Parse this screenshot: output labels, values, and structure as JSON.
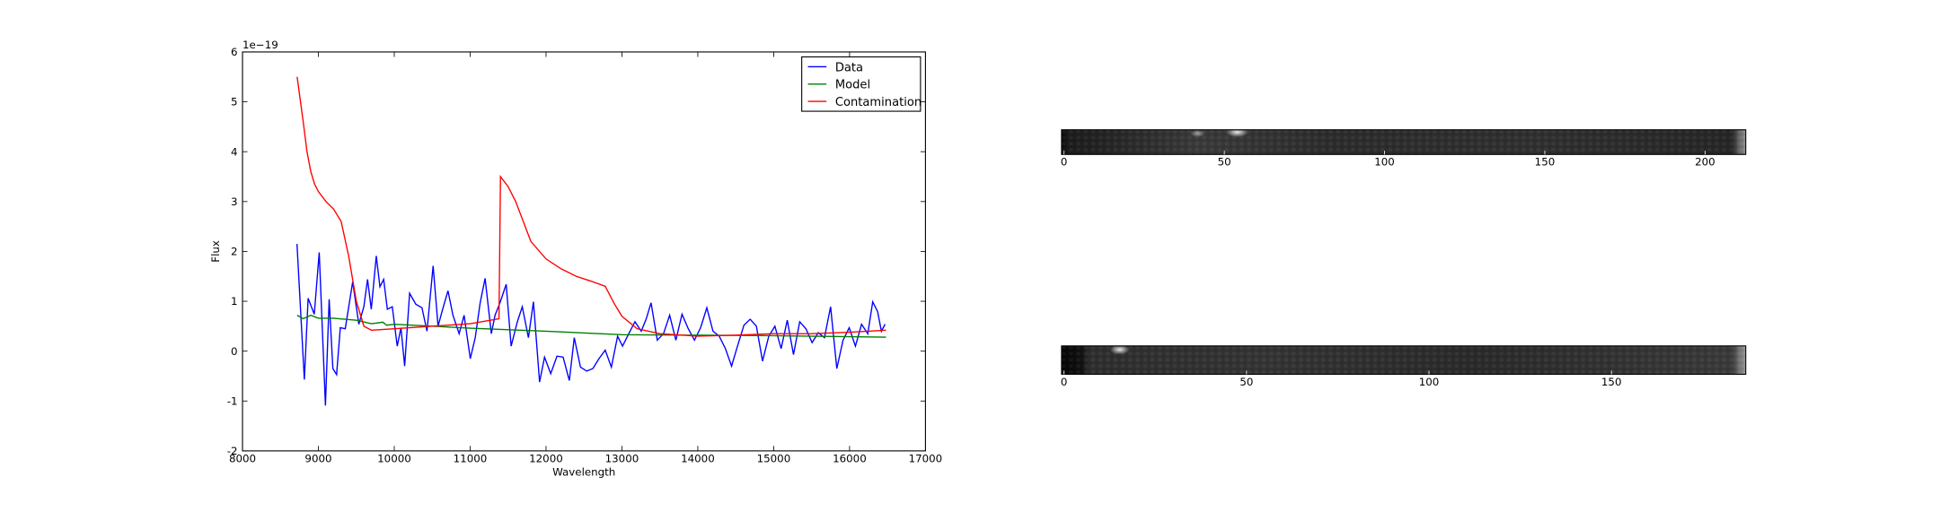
{
  "chart_data": [
    {
      "type": "line",
      "xlabel": "Wavelength",
      "ylabel": "Flux",
      "offset_text": "1e−19",
      "xlim": [
        8000,
        17000
      ],
      "xticks": [
        8000,
        9000,
        10000,
        11000,
        12000,
        13000,
        14000,
        15000,
        16000,
        17000
      ],
      "ylim": [
        -2,
        6
      ],
      "yticks": [
        -2,
        -1,
        0,
        1,
        2,
        3,
        4,
        5,
        6
      ],
      "legend": "upper right",
      "series": [
        {
          "name": "Data",
          "color": "#0000ff",
          "x": [
            8718,
            8815,
            8865,
            8946,
            9011,
            9093,
            9142,
            9191,
            9240,
            9289,
            9354,
            9452,
            9533,
            9599,
            9648,
            9697,
            9763,
            9811,
            9860,
            9909,
            9974,
            10039,
            10088,
            10137,
            10202,
            10284,
            10365,
            10431,
            10512,
            10577,
            10643,
            10708,
            10773,
            10855,
            10920,
            11002,
            11067,
            11132,
            11197,
            11279,
            11328,
            11393,
            11475,
            11540,
            11622,
            11687,
            11768,
            11834,
            11915,
            11980,
            12062,
            12144,
            12225,
            12307,
            12372,
            12454,
            12535,
            12617,
            12698,
            12780,
            12861,
            12943,
            13008,
            13090,
            13172,
            13254,
            13319,
            13384,
            13466,
            13548,
            13629,
            13711,
            13792,
            13874,
            13956,
            14037,
            14119,
            14200,
            14282,
            14364,
            14445,
            14527,
            14608,
            14690,
            14772,
            14853,
            14935,
            15016,
            15098,
            15179,
            15261,
            15343,
            15424,
            15506,
            15587,
            15669,
            15750,
            15832,
            15914,
            15995,
            16077,
            16158,
            16240,
            16305,
            16370,
            16419,
            16468
          ],
          "values": [
            2.15,
            -0.57,
            1.06,
            0.74,
            1.98,
            -1.09,
            1.04,
            -0.35,
            -0.47,
            0.47,
            0.45,
            1.39,
            0.54,
            0.89,
            1.44,
            0.84,
            1.91,
            1.29,
            1.44,
            0.84,
            0.89,
            0.1,
            0.47,
            -0.3,
            1.16,
            0.94,
            0.87,
            0.4,
            1.71,
            0.5,
            0.87,
            1.21,
            0.72,
            0.35,
            0.72,
            -0.15,
            0.27,
            0.97,
            1.46,
            0.35,
            0.72,
            0.97,
            1.34,
            0.1,
            0.59,
            0.89,
            0.27,
            0.99,
            -0.62,
            -0.12,
            -0.45,
            -0.1,
            -0.12,
            -0.59,
            0.27,
            -0.32,
            -0.4,
            -0.35,
            -0.15,
            0.02,
            -0.32,
            0.3,
            0.1,
            0.35,
            0.59,
            0.4,
            0.64,
            0.97,
            0.22,
            0.35,
            0.72,
            0.22,
            0.74,
            0.45,
            0.22,
            0.47,
            0.87,
            0.4,
            0.3,
            0.05,
            -0.3,
            0.12,
            0.52,
            0.64,
            0.5,
            -0.2,
            0.3,
            0.5,
            0.05,
            0.62,
            -0.07,
            0.59,
            0.45,
            0.17,
            0.37,
            0.27,
            0.89,
            -0.35,
            0.22,
            0.47,
            0.1,
            0.54,
            0.35,
            0.99,
            0.79,
            0.4,
            0.54
          ]
        },
        {
          "name": "Model",
          "color": "#008000",
          "x": [
            8720,
            8800,
            8900,
            9000,
            9200,
            9500,
            9700,
            9850,
            9900,
            10000,
            10500,
            11000,
            12000,
            13000,
            14000,
            15000,
            16480
          ],
          "values": [
            0.72,
            0.65,
            0.72,
            0.66,
            0.66,
            0.62,
            0.55,
            0.58,
            0.52,
            0.54,
            0.5,
            0.46,
            0.4,
            0.33,
            0.32,
            0.31,
            0.28
          ]
        },
        {
          "name": "Contamination",
          "color": "#ff0000",
          "x": [
            8720,
            8800,
            8850,
            8900,
            8950,
            9000,
            9100,
            9200,
            9300,
            9400,
            9500,
            9600,
            9700,
            10000,
            10500,
            11000,
            11380,
            11400,
            11500,
            11600,
            11700,
            11800,
            12000,
            12200,
            12400,
            12600,
            12780,
            12900,
            13000,
            13200,
            13500,
            14000,
            14500,
            15000,
            15500,
            16000,
            16480
          ],
          "values": [
            5.5,
            4.6,
            4.0,
            3.6,
            3.35,
            3.2,
            3.0,
            2.85,
            2.6,
            1.9,
            1.0,
            0.5,
            0.42,
            0.45,
            0.5,
            0.55,
            0.65,
            3.5,
            3.3,
            3.0,
            2.6,
            2.2,
            1.85,
            1.65,
            1.5,
            1.4,
            1.3,
            0.95,
            0.7,
            0.45,
            0.35,
            0.3,
            0.32,
            0.35,
            0.35,
            0.38,
            0.42
          ]
        }
      ]
    },
    {
      "type": "image",
      "xlim": [
        0,
        212.7
      ],
      "xticks": [
        0,
        50,
        100,
        150,
        200
      ]
    },
    {
      "type": "image",
      "xlim": [
        0,
        186.8
      ],
      "xticks": [
        0,
        50,
        100,
        150
      ]
    }
  ]
}
